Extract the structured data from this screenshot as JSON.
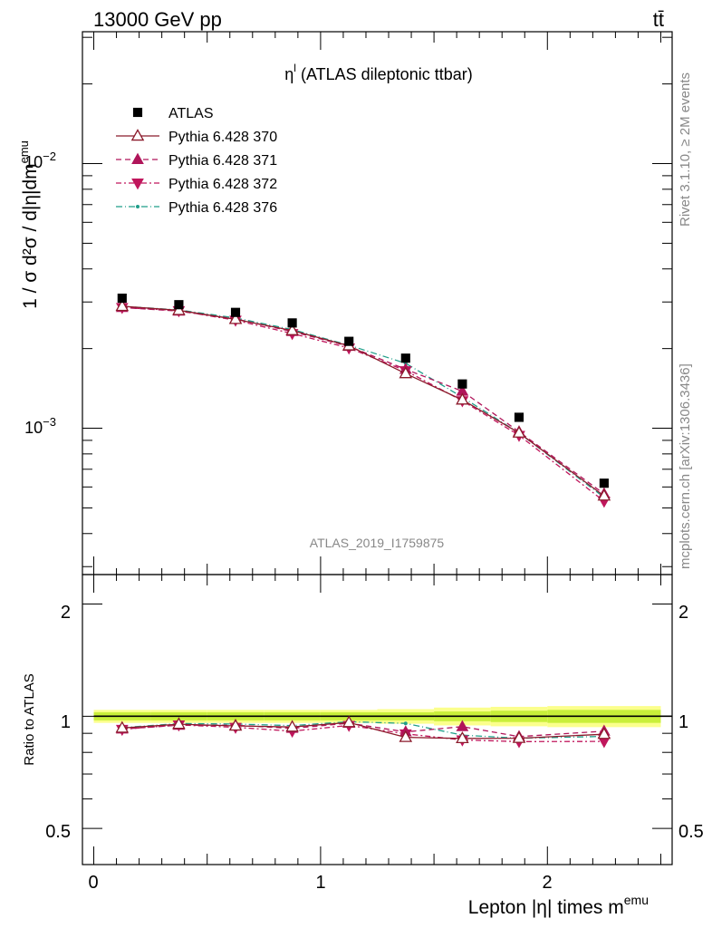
{
  "header": {
    "left": "13000 GeV pp",
    "right": "tt̄"
  },
  "side": {
    "top": "Rivet 3.1.10, ≥ 2M events",
    "bottom": "mcplots.cern.ch [arXiv:1306.3436]"
  },
  "analysis_id": "ATLAS_2019_I1759875",
  "chart_data": {
    "type": "scatter",
    "title_main": "η",
    "title_sup": "l",
    "title_rest": " (ATLAS dileptonic ttbar)",
    "xlabel": "Lepton |η| times m",
    "xlabel_sup": "emu",
    "ylabel": "1 / σ  d²σ / d|η|dm",
    "ylabel_sup": "emu",
    "ratio_ylabel": "Ratio to ATLAS",
    "x_ticks": [
      "0",
      "1",
      "2"
    ],
    "y_ticks_main": [
      {
        "value": 0.01,
        "base": "10",
        "exp": "−2"
      },
      {
        "value": 0.001,
        "base": "10",
        "exp": "−3"
      }
    ],
    "y_ticks_ratio": [
      "0.5",
      "1",
      "2"
    ],
    "xlim": [
      -0.05,
      2.55
    ],
    "ylim_main": [
      0.00028,
      0.0315
    ],
    "ylim_ratio": [
      0.4,
      2.4
    ],
    "yscale": "log",
    "x": [
      0.125,
      0.375,
      0.625,
      0.875,
      1.125,
      1.375,
      1.625,
      1.875,
      2.25
    ],
    "series": [
      {
        "name": "ATLAS",
        "marker": "square",
        "color": "#000000",
        "values": [
          0.0031,
          0.00293,
          0.00274,
          0.0025,
          0.00213,
          0.00184,
          0.00147,
          0.0011,
          0.00062
        ],
        "ratio": [
          1,
          1,
          1,
          1,
          1,
          1,
          1,
          1,
          1
        ]
      },
      {
        "name": "Pythia 6.428 370",
        "marker": "triangle-up-open",
        "color": "#8b1a2b",
        "dash": "",
        "values": [
          0.00289,
          0.00279,
          0.00258,
          0.00234,
          0.00205,
          0.00161,
          0.00128,
          0.00096,
          0.000555
        ],
        "ratio": [
          0.93,
          0.952,
          0.942,
          0.936,
          0.962,
          0.878,
          0.872,
          0.873,
          0.895
        ]
      },
      {
        "name": "Pythia 6.428 371",
        "marker": "triangle-up",
        "color": "#b0155a",
        "dash": "6,4",
        "values": [
          0.00286,
          0.00277,
          0.00259,
          0.00232,
          0.00204,
          0.00167,
          0.00138,
          0.00097,
          0.000565
        ],
        "ratio": [
          0.924,
          0.946,
          0.946,
          0.928,
          0.958,
          0.908,
          0.938,
          0.882,
          0.912
        ]
      },
      {
        "name": "Pythia 6.428 372",
        "marker": "triangle-down",
        "color": "#c0165c",
        "dash": "6,3,2,3",
        "values": [
          0.00286,
          0.00278,
          0.00256,
          0.00228,
          0.00201,
          0.00165,
          0.00127,
          0.00094,
          0.00053
        ],
        "ratio": [
          0.922,
          0.948,
          0.934,
          0.912,
          0.945,
          0.897,
          0.864,
          0.855,
          0.856
        ]
      },
      {
        "name": "Pythia 6.428 376",
        "marker": "dot",
        "color": "#1f9e89",
        "dash": "7,3,1,3",
        "values": [
          0.00289,
          0.0028,
          0.00261,
          0.00236,
          0.00206,
          0.00176,
          0.00131,
          0.00096,
          0.000548
        ],
        "ratio": [
          0.932,
          0.956,
          0.953,
          0.944,
          0.967,
          0.957,
          0.89,
          0.873,
          0.883
        ]
      }
    ],
    "band": {
      "x_edges": [
        0.0,
        0.25,
        0.5,
        0.75,
        1.0,
        1.25,
        1.5,
        1.75,
        2.0,
        2.5
      ],
      "inner": [
        0.025,
        0.025,
        0.025,
        0.025,
        0.025,
        0.025,
        0.03,
        0.035,
        0.04
      ],
      "outer": [
        0.04,
        0.04,
        0.04,
        0.04,
        0.04,
        0.045,
        0.055,
        0.06,
        0.065
      ],
      "inner_color": "#c9ef3a",
      "outer_color": "#fbff8c"
    }
  }
}
